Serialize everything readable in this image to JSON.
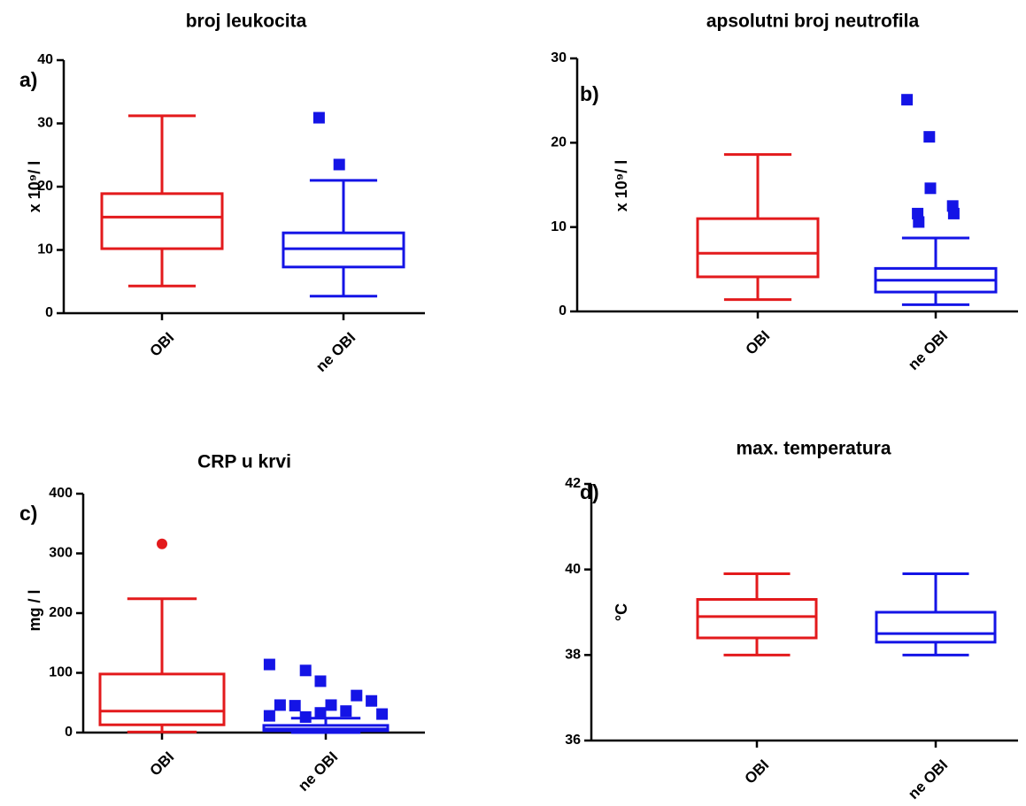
{
  "chart_data": [
    {
      "type": "box",
      "title": "broj leukocita",
      "panel_label": "a)",
      "y_label": "x 10⁹/ l",
      "categories": [
        "OBI",
        "ne OBI"
      ],
      "ylim": [
        0,
        40
      ],
      "yticks": [
        0,
        10,
        20,
        30,
        40
      ],
      "boxes": [
        {
          "color": "#e31a1c",
          "whisker_low": 4.3,
          "q1": 10.2,
          "median": 15.2,
          "q3": 18.9,
          "whisker_high": 31.2,
          "outlier_marker": "circle",
          "outliers": []
        },
        {
          "color": "#1414e6",
          "whisker_low": 2.7,
          "q1": 7.3,
          "median": 10.2,
          "q3": 12.7,
          "whisker_high": 21.0,
          "outlier_marker": "square",
          "outliers": [
            30.9,
            23.5
          ]
        }
      ]
    },
    {
      "type": "box",
      "title": "apsolutni broj neutrofila",
      "panel_label": "b)",
      "y_label": "x 10⁹/ l",
      "categories": [
        "OBI",
        "ne OBI"
      ],
      "ylim": [
        0,
        30
      ],
      "yticks": [
        0,
        10,
        20,
        30
      ],
      "boxes": [
        {
          "color": "#e31a1c",
          "whisker_low": 1.4,
          "q1": 4.1,
          "median": 6.9,
          "q3": 11.0,
          "whisker_high": 18.6,
          "outlier_marker": "circle",
          "outliers": []
        },
        {
          "color": "#1414e6",
          "whisker_low": 0.8,
          "q1": 2.3,
          "median": 3.7,
          "q3": 5.1,
          "whisker_high": 8.7,
          "outlier_marker": "square",
          "outliers": [
            25.1,
            20.7,
            14.6,
            12.5,
            11.6,
            11.6,
            10.6
          ]
        }
      ]
    },
    {
      "type": "box",
      "title": "CRP u krvi",
      "panel_label": "c)",
      "y_label": "mg / l",
      "categories": [
        "OBI",
        "ne OBI"
      ],
      "ylim": [
        0,
        400
      ],
      "yticks": [
        0,
        100,
        200,
        300,
        400
      ],
      "boxes": [
        {
          "color": "#e31a1c",
          "whisker_low": 1,
          "q1": 13,
          "median": 36,
          "q3": 98,
          "whisker_high": 224,
          "outlier_marker": "circle",
          "outliers": [
            316
          ]
        },
        {
          "color": "#1414e6",
          "whisker_low": 0,
          "q1": 3,
          "median": 6,
          "q3": 12,
          "whisker_high": 24,
          "outlier_marker": "square",
          "outliers": [
            114,
            104,
            86,
            62,
            53,
            46,
            45,
            46,
            36,
            31,
            28,
            26,
            33
          ]
        }
      ]
    },
    {
      "type": "box",
      "title": "max. temperatura",
      "panel_label": "d)",
      "y_label": "°C",
      "categories": [
        "OBI",
        "ne OBI"
      ],
      "ylim": [
        36,
        42
      ],
      "yticks": [
        36,
        38,
        40,
        42
      ],
      "boxes": [
        {
          "color": "#e31a1c",
          "whisker_low": 38.0,
          "q1": 38.4,
          "median": 38.9,
          "q3": 39.3,
          "whisker_high": 39.9,
          "outlier_marker": "circle",
          "outliers": []
        },
        {
          "color": "#1414e6",
          "whisker_low": 38.0,
          "q1": 38.3,
          "median": 38.5,
          "q3": 39.0,
          "whisker_high": 39.9,
          "outlier_marker": "square",
          "outliers": []
        }
      ]
    }
  ]
}
